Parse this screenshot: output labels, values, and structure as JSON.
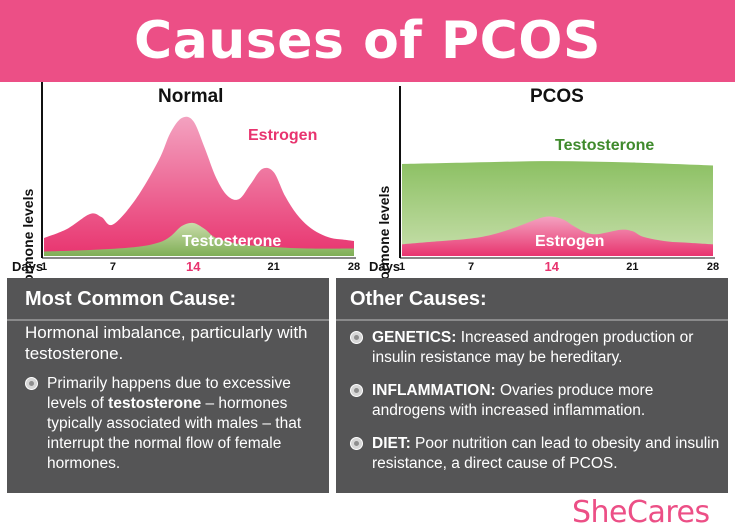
{
  "header": {
    "title": "Causes of PCOS"
  },
  "chart_data": [
    {
      "type": "area",
      "title": "Normal",
      "ylabel": "Hormone levels",
      "xlabel": "Days",
      "xlim": [
        1,
        28
      ],
      "x_ticks": [
        "1",
        "7",
        "14",
        "21",
        "28"
      ],
      "highlight_tick": "14",
      "series": [
        {
          "name": "Estrogen",
          "color": "#e8346f",
          "x": [
            1,
            3,
            5,
            6,
            7,
            9,
            11,
            12,
            13,
            14,
            15,
            16,
            17,
            18,
            19,
            20,
            21,
            22,
            23,
            24,
            25,
            26,
            27,
            28
          ],
          "values": [
            12,
            18,
            28,
            26,
            21,
            38,
            64,
            82,
            92,
            90,
            72,
            52,
            40,
            38,
            48,
            58,
            56,
            40,
            28,
            20,
            15,
            12,
            11,
            10
          ]
        },
        {
          "name": "Testosterone",
          "color": "#8fb766",
          "x": [
            1,
            5,
            9,
            11,
            12,
            13,
            14,
            15,
            16,
            18,
            21,
            24,
            28
          ],
          "values": [
            3,
            4,
            6,
            9,
            13,
            20,
            22,
            18,
            12,
            8,
            6,
            5,
            5
          ]
        }
      ]
    },
    {
      "type": "area",
      "title": "PCOS",
      "ylabel": "Hormone levels",
      "xlabel": "Days",
      "xlim": [
        1,
        28
      ],
      "x_ticks": [
        "1",
        "7",
        "14",
        "21",
        "28"
      ],
      "highlight_tick": "14",
      "series": [
        {
          "name": "Testosterone",
          "color": "#7ab04f",
          "x": [
            1,
            7,
            14,
            21,
            28
          ],
          "values": [
            63,
            64,
            65,
            64,
            62
          ]
        },
        {
          "name": "Estrogen",
          "color": "#e8346f",
          "x": [
            1,
            4,
            7,
            9,
            11,
            13,
            14,
            15,
            16,
            17,
            18,
            20,
            21,
            22,
            24,
            26,
            28
          ],
          "values": [
            8,
            10,
            12,
            15,
            20,
            26,
            27,
            25,
            20,
            16,
            15,
            18,
            17,
            13,
            10,
            9,
            8
          ]
        }
      ]
    }
  ],
  "main_cause": {
    "heading": "Most Common Cause:",
    "lead": "Hormonal imbalance, particularly with testosterone.",
    "bullet": {
      "text_before": "Primarily happens due to excessive levels of ",
      "bold": "testosterone",
      "text_after": " – hormones typically associated with males – that interrupt the normal flow of female hormones."
    }
  },
  "other_causes": {
    "heading": "Other Causes:",
    "items": [
      {
        "label": "GENETICS:",
        "text": " Increased androgen production or insulin resistance may be hereditary."
      },
      {
        "label": "INFLAMMATION:",
        "text": " Ovaries produce more androgens with increased inflammation."
      },
      {
        "label": "DIET:",
        "text": " Poor nutrition can lead to obesity and insulin resistance, a direct cause of PCOS."
      }
    ]
  },
  "footer": {
    "logo": "SheCares"
  }
}
